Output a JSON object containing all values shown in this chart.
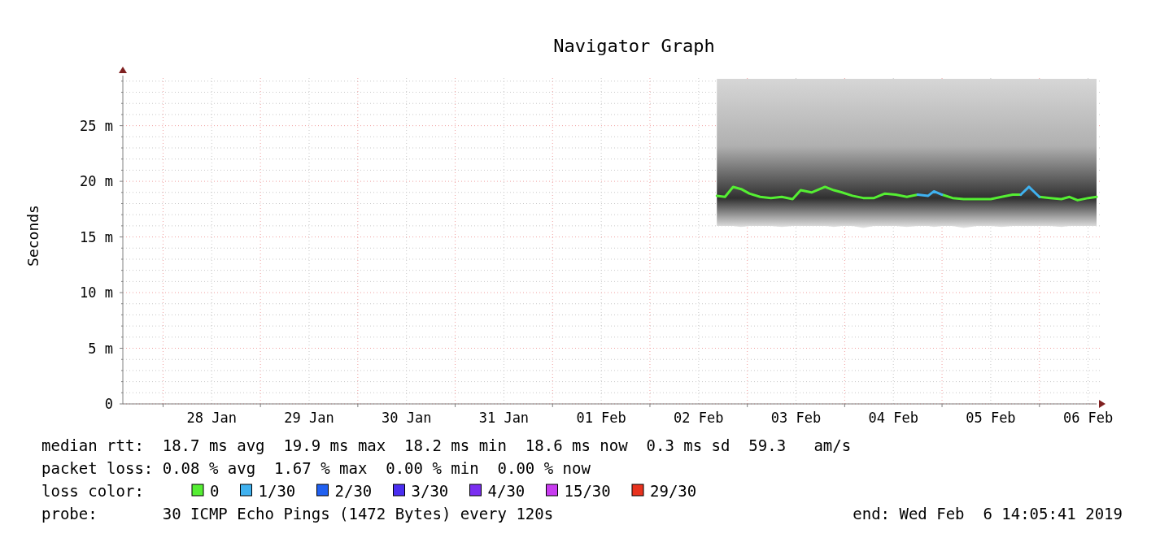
{
  "chart_data": {
    "type": "line",
    "title": "Navigator Graph",
    "ylabel": "Seconds",
    "x": [
      "2019-02-02T16:30",
      "2019-02-02T18:30",
      "2019-02-02T20:30",
      "2019-02-02T22:30",
      "2019-02-03T00:30",
      "2019-02-03T03:10",
      "2019-02-03T05:50",
      "2019-02-03T08:30",
      "2019-02-03T11:10",
      "2019-02-03T13:10",
      "2019-02-03T15:50",
      "2019-02-03T19:10",
      "2019-02-03T21:20",
      "2019-02-03T23:20",
      "2019-02-04T01:55",
      "2019-02-04T04:35",
      "2019-02-04T07:15",
      "2019-02-04T09:55",
      "2019-02-04T12:35",
      "2019-02-04T15:20",
      "2019-02-04T18:00",
      "2019-02-04T20:35",
      "2019-02-04T22:00",
      "2019-02-05T00:00",
      "2019-02-05T02:35",
      "2019-02-05T05:20",
      "2019-02-05T08:40",
      "2019-02-05T12:00",
      "2019-02-05T14:40",
      "2019-02-05T17:25",
      "2019-02-05T19:25",
      "2019-02-05T21:25",
      "2019-02-06T00:00",
      "2019-02-06T02:40",
      "2019-02-06T05:25",
      "2019-02-06T07:25",
      "2019-02-06T09:25",
      "2019-02-06T12:05",
      "2019-02-06T14:05"
    ],
    "series": [
      {
        "name": "0",
        "color": "#55ee33",
        "values": [
          18.7,
          18.6,
          19.5,
          19.3,
          18.9,
          18.6,
          18.5,
          18.6,
          18.4,
          19.2,
          19.0,
          19.5,
          19.2,
          19.0,
          18.7,
          18.5,
          18.5,
          18.9,
          18.8,
          18.6,
          18.8,
          null,
          null,
          18.8,
          18.5,
          18.4,
          18.4,
          18.4,
          18.6,
          18.8,
          18.8,
          null,
          18.6,
          18.5,
          18.4,
          18.6,
          18.3,
          18.5,
          18.6
        ],
        "lower": [
          16.0,
          16.0,
          16.0,
          15.9,
          16.0,
          16.0,
          16.0,
          15.9,
          16.0,
          16.0,
          16.0,
          16.0,
          15.9,
          16.0,
          16.0,
          15.8,
          16.0,
          16.0,
          16.0,
          15.9,
          16.0,
          16.0,
          15.9,
          16.0,
          16.0,
          15.8,
          16.0,
          16.0,
          15.9,
          16.0,
          16.0,
          16.0,
          16.0,
          16.0,
          15.9,
          16.0,
          16.0,
          16.0,
          16.0
        ],
        "upper": [
          29.2,
          29.2,
          29.2,
          29.2,
          29.2,
          29.2,
          29.2,
          29.2,
          29.2,
          29.2,
          29.2,
          29.2,
          29.2,
          29.2,
          29.2,
          29.2,
          29.2,
          29.2,
          29.2,
          29.2,
          29.2,
          29.2,
          29.2,
          29.2,
          29.2,
          29.2,
          29.2,
          29.2,
          29.2,
          29.2,
          29.2,
          29.2,
          29.2,
          29.2,
          29.2,
          29.2,
          29.2,
          29.2,
          29.2
        ]
      },
      {
        "name": "1/30",
        "color": "#3fb1ef",
        "values": [
          null,
          null,
          null,
          null,
          null,
          null,
          null,
          null,
          null,
          null,
          null,
          null,
          null,
          null,
          null,
          null,
          null,
          null,
          null,
          null,
          18.8,
          18.7,
          19.1,
          18.8,
          null,
          null,
          null,
          null,
          null,
          null,
          18.8,
          19.5,
          18.6,
          null,
          null,
          null,
          null,
          null,
          null
        ]
      },
      {
        "name": "2/30",
        "color": "#2060f0",
        "values": [
          null,
          null,
          null,
          null,
          null,
          null,
          null,
          null,
          null,
          null,
          null,
          null,
          null,
          null,
          null,
          null,
          null,
          null,
          null,
          null,
          null,
          null,
          null,
          null,
          null,
          null,
          null,
          null,
          null,
          null,
          null,
          null,
          null,
          null,
          null,
          null,
          null,
          null,
          null
        ]
      },
      {
        "name": "3/30",
        "color": "#4a2ef0",
        "values": [
          null,
          null,
          null,
          null,
          null,
          null,
          null,
          null,
          null,
          null,
          null,
          null,
          null,
          null,
          null,
          null,
          null,
          null,
          null,
          null,
          null,
          null,
          null,
          null,
          null,
          null,
          null,
          null,
          null,
          null,
          null,
          null,
          null,
          null,
          null,
          null,
          null,
          null,
          null
        ]
      },
      {
        "name": "4/30",
        "color": "#7a2ef0",
        "values": [
          null,
          null,
          null,
          null,
          null,
          null,
          null,
          null,
          null,
          null,
          null,
          null,
          null,
          null,
          null,
          null,
          null,
          null,
          null,
          null,
          null,
          null,
          null,
          null,
          null,
          null,
          null,
          null,
          null,
          null,
          null,
          null,
          null,
          null,
          null,
          null,
          null,
          null,
          null
        ]
      },
      {
        "name": "15/30",
        "color": "#c83cf0",
        "values": [
          null,
          null,
          null,
          null,
          null,
          null,
          null,
          null,
          null,
          null,
          null,
          null,
          null,
          null,
          null,
          null,
          null,
          null,
          null,
          null,
          null,
          null,
          null,
          null,
          null,
          null,
          null,
          null,
          null,
          null,
          null,
          null,
          null,
          null,
          null,
          null,
          null,
          null,
          null
        ]
      },
      {
        "name": "29/30",
        "color": "#e8321e",
        "values": [
          null,
          null,
          null,
          null,
          null,
          null,
          null,
          null,
          null,
          null,
          null,
          null,
          null,
          null,
          null,
          null,
          null,
          null,
          null,
          null,
          null,
          null,
          null,
          null,
          null,
          null,
          null,
          null,
          null,
          null,
          null,
          null,
          null,
          null,
          null,
          null,
          null,
          null,
          null
        ]
      }
    ],
    "xlim": [
      "2019-01-27T14:05",
      "2019-02-06T14:05"
    ],
    "xticks": [
      {
        "value": "2019-01-28T00:00",
        "label": null
      },
      {
        "value": "2019-01-28T12:00",
        "label": "28 Jan"
      },
      {
        "value": "2019-01-29T00:00",
        "label": null
      },
      {
        "value": "2019-01-29T12:00",
        "label": "29 Jan"
      },
      {
        "value": "2019-01-30T00:00",
        "label": null
      },
      {
        "value": "2019-01-30T12:00",
        "label": "30 Jan"
      },
      {
        "value": "2019-01-31T00:00",
        "label": null
      },
      {
        "value": "2019-01-31T12:00",
        "label": "31 Jan"
      },
      {
        "value": "2019-02-01T00:00",
        "label": null
      },
      {
        "value": "2019-02-01T12:00",
        "label": "01 Feb"
      },
      {
        "value": "2019-02-02T00:00",
        "label": null
      },
      {
        "value": "2019-02-02T12:00",
        "label": "02 Feb"
      },
      {
        "value": "2019-02-03T00:00",
        "label": null
      },
      {
        "value": "2019-02-03T12:00",
        "label": "03 Feb"
      },
      {
        "value": "2019-02-04T00:00",
        "label": null
      },
      {
        "value": "2019-02-04T12:00",
        "label": "04 Feb"
      },
      {
        "value": "2019-02-05T00:00",
        "label": null
      },
      {
        "value": "2019-02-05T12:00",
        "label": "05 Feb"
      },
      {
        "value": "2019-02-06T00:00",
        "label": null
      },
      {
        "value": "2019-02-06T12:00",
        "label": "06 Feb"
      }
    ],
    "ylim": [
      0,
      29.5
    ],
    "yticks": [
      0,
      {
        "value": 1,
        "label": null
      },
      {
        "value": 2,
        "label": null
      },
      {
        "value": 3,
        "label": null
      },
      {
        "value": 4,
        "label": null
      },
      {
        "value": 5,
        "label": "5 m"
      },
      {
        "value": 6,
        "label": null
      },
      {
        "value": 7,
        "label": null
      },
      {
        "value": 8,
        "label": null
      },
      {
        "value": 9,
        "label": null
      },
      {
        "value": 10,
        "label": "10 m"
      },
      {
        "value": 11,
        "label": null
      },
      {
        "value": 12,
        "label": null
      },
      {
        "value": 13,
        "label": null
      },
      {
        "value": 14,
        "label": null
      },
      {
        "value": 15,
        "label": "15 m"
      },
      {
        "value": 16,
        "label": null
      },
      {
        "value": 17,
        "label": null
      },
      {
        "value": 18,
        "label": null
      },
      {
        "value": 19,
        "label": null
      },
      {
        "value": 20,
        "label": "20 m"
      },
      {
        "value": 21,
        "label": null
      },
      {
        "value": 22,
        "label": null
      },
      {
        "value": 23,
        "label": null
      },
      {
        "value": 24,
        "label": null
      },
      {
        "value": 25,
        "label": "25 m"
      },
      {
        "value": 26,
        "label": null
      },
      {
        "value": 27,
        "label": null
      },
      {
        "value": 28,
        "label": null
      },
      {
        "value": 29,
        "label": null
      }
    ],
    "grid": true,
    "legend": "bottom",
    "legend_title": "loss color:",
    "line_style": "solid",
    "marker": "none",
    "annotations": [
      "median rtt:  18.7 ms avg  19.9 ms max  18.2 ms min  18.6 ms now  0.3 ms sd  59.3   am/s",
      "packet loss: 0.08 % avg  1.67 % max  0.00 % min  0.00 % now",
      "probe:       30 ICMP Echo Pings (1472 Bytes) every 120s",
      "end: Wed Feb  6 14:05:41 2019"
    ]
  }
}
